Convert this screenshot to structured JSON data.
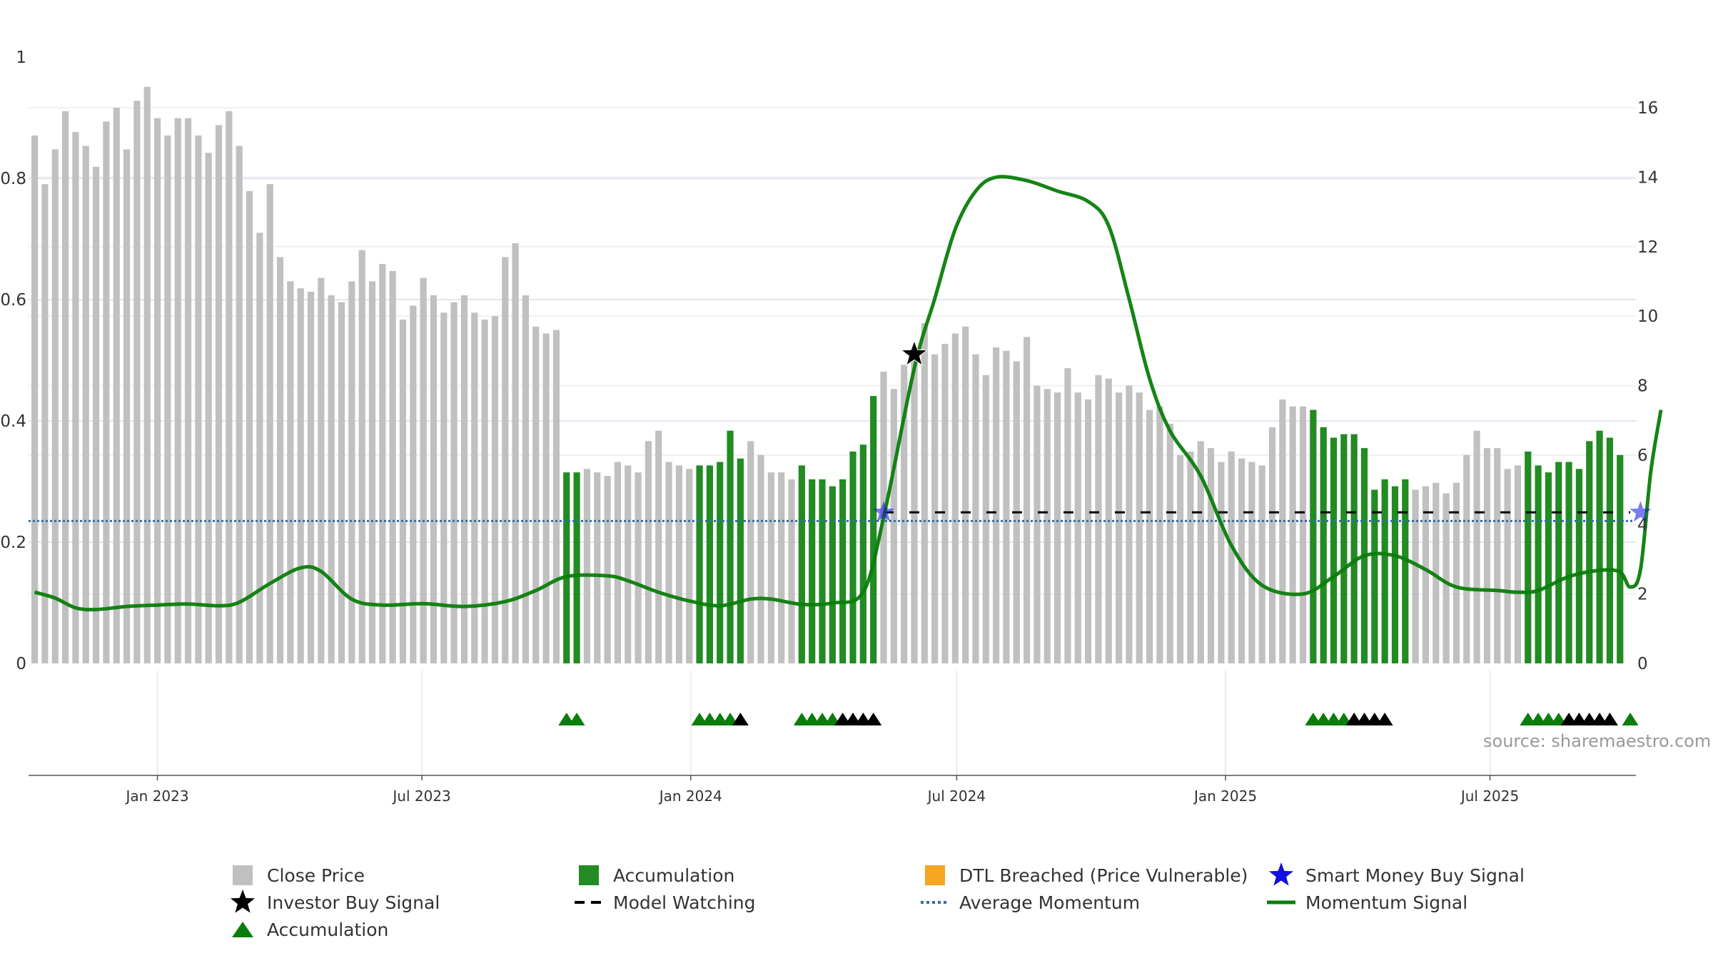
{
  "chart_data": {
    "type": "bar",
    "x_start": "2022-10-09",
    "x_step_days": 7,
    "left_axis": {
      "ticks": [
        "0",
        "0.2",
        "0.4",
        "0.6",
        "0.8",
        "1"
      ],
      "range": [
        0,
        1
      ]
    },
    "right_axis": {
      "ticks": [
        "0",
        "2",
        "4",
        "6",
        "8",
        "10",
        "12",
        "14",
        "16"
      ],
      "range": [
        0,
        17.5
      ]
    },
    "x_ticks": [
      "Jan 2023",
      "Jul 2023",
      "Jan 2024",
      "Jul 2024",
      "Jan 2025",
      "Jul 2025"
    ],
    "close_price": [
      15.2,
      13.8,
      14.8,
      15.9,
      15.3,
      14.9,
      14.3,
      15.6,
      16.0,
      14.8,
      16.2,
      16.6,
      15.7,
      15.2,
      15.7,
      15.7,
      15.2,
      14.7,
      15.5,
      15.9,
      14.9,
      13.6,
      12.4,
      13.8,
      11.7,
      11.0,
      10.8,
      10.7,
      11.1,
      10.6,
      10.4,
      11.0,
      11.9,
      11.0,
      11.5,
      11.3,
      9.9,
      10.3,
      11.1,
      10.6,
      10.1,
      10.4,
      10.6,
      10.1,
      9.9,
      10.0,
      11.7,
      12.1,
      10.6,
      9.7,
      9.5,
      9.6,
      5.5,
      5.5,
      5.6,
      5.5,
      5.4,
      5.8,
      5.7,
      5.5,
      6.4,
      6.7,
      5.8,
      5.7,
      5.6,
      5.7,
      5.7,
      5.8,
      6.7,
      5.9,
      6.4,
      6.0,
      5.5,
      5.5,
      5.3,
      5.7,
      5.3,
      5.3,
      5.1,
      5.3,
      6.1,
      6.3,
      7.7,
      8.4,
      7.9,
      8.6,
      9.0,
      9.8,
      8.9,
      9.2,
      9.5,
      9.7,
      8.9,
      8.3,
      9.1,
      9.0,
      8.7,
      9.4,
      8.0,
      7.9,
      7.8,
      8.5,
      7.8,
      7.6,
      8.3,
      8.2,
      7.8,
      8.0,
      7.8,
      7.3,
      7.4,
      6.9,
      6.0,
      6.1,
      6.4,
      6.2,
      5.8,
      6.1,
      5.9,
      5.8,
      5.7,
      6.8,
      7.6,
      7.4,
      7.4,
      7.3,
      6.8,
      6.5,
      6.6,
      6.6,
      6.2,
      5.0,
      5.3,
      5.1,
      5.3,
      5.0,
      5.1,
      5.2,
      4.9,
      5.2,
      6.0,
      6.7,
      6.2,
      6.2,
      5.6,
      5.7,
      6.1,
      5.7,
      5.5,
      5.8,
      5.8,
      5.6,
      6.4,
      6.7,
      6.5,
      6.0
    ],
    "accumulation_weeks": [
      52,
      53,
      65,
      66,
      67,
      68,
      69,
      75,
      76,
      77,
      78,
      79,
      80,
      81,
      82,
      125,
      126,
      127,
      128,
      129,
      130,
      131,
      132,
      133,
      134,
      146,
      147,
      148,
      149,
      150,
      151,
      152,
      153,
      154,
      155,
      156,
      157,
      158
    ],
    "average_momentum": 4.1,
    "model_watching": {
      "start_week": 83,
      "end_week": 156,
      "level": 4.35
    },
    "momentum_key_points": [
      [
        0,
        2.05
      ],
      [
        2,
        1.88
      ],
      [
        4,
        1.6
      ],
      [
        6,
        1.55
      ],
      [
        9,
        1.64
      ],
      [
        12,
        1.68
      ],
      [
        15,
        1.71
      ],
      [
        18,
        1.66
      ],
      [
        20,
        1.76
      ],
      [
        23,
        2.3
      ],
      [
        26,
        2.75
      ],
      [
        28,
        2.65
      ],
      [
        31,
        1.85
      ],
      [
        34,
        1.68
      ],
      [
        38,
        1.72
      ],
      [
        42,
        1.64
      ],
      [
        46,
        1.78
      ],
      [
        49,
        2.1
      ],
      [
        52,
        2.5
      ],
      [
        56,
        2.52
      ],
      [
        58,
        2.38
      ],
      [
        61,
        2.05
      ],
      [
        64,
        1.8
      ],
      [
        67,
        1.66
      ],
      [
        70,
        1.85
      ],
      [
        72,
        1.85
      ],
      [
        75,
        1.7
      ],
      [
        78,
        1.74
      ],
      [
        81,
        2.05
      ],
      [
        83,
        4.2
      ],
      [
        86,
        8.5
      ],
      [
        88,
        10.5
      ],
      [
        90,
        12.5
      ],
      [
        92,
        13.6
      ],
      [
        94,
        14.0
      ],
      [
        97,
        13.9
      ],
      [
        100,
        13.6
      ],
      [
        103,
        13.3
      ],
      [
        105,
        12.6
      ],
      [
        107,
        10.5
      ],
      [
        109,
        8.2
      ],
      [
        111,
        6.7
      ],
      [
        114,
        5.4
      ],
      [
        117,
        3.4
      ],
      [
        120,
        2.25
      ],
      [
        124,
        2.0
      ],
      [
        127,
        2.5
      ],
      [
        130,
        3.1
      ],
      [
        133,
        3.1
      ],
      [
        136,
        2.7
      ],
      [
        139,
        2.2
      ],
      [
        143,
        2.1
      ],
      [
        145,
        2.05
      ],
      [
        147,
        2.1
      ],
      [
        150,
        2.5
      ],
      [
        153,
        2.68
      ],
      [
        155,
        2.63
      ],
      [
        156,
        2.2
      ],
      [
        157,
        2.7
      ],
      [
        158,
        5.5
      ],
      [
        159,
        7.3
      ]
    ],
    "investor_buy_signals": [
      [
        86,
        8.9
      ]
    ],
    "smart_money_buy_signals": [
      [
        83,
        4.35
      ],
      [
        157,
        4.35
      ]
    ],
    "triangles": [
      {
        "week": 52,
        "color": "green"
      },
      {
        "week": 53,
        "color": "green"
      },
      {
        "week": 65,
        "color": "green"
      },
      {
        "week": 66,
        "color": "green"
      },
      {
        "week": 67,
        "color": "green"
      },
      {
        "week": 68,
        "color": "green"
      },
      {
        "week": 69,
        "color": "black"
      },
      {
        "week": 75,
        "color": "green"
      },
      {
        "week": 76,
        "color": "green"
      },
      {
        "week": 77,
        "color": "green"
      },
      {
        "week": 78,
        "color": "green"
      },
      {
        "week": 79,
        "color": "black"
      },
      {
        "week": 80,
        "color": "black"
      },
      {
        "week": 81,
        "color": "black"
      },
      {
        "week": 82,
        "color": "black"
      },
      {
        "week": 125,
        "color": "green"
      },
      {
        "week": 126,
        "color": "green"
      },
      {
        "week": 127,
        "color": "green"
      },
      {
        "week": 128,
        "color": "green"
      },
      {
        "week": 129,
        "color": "black"
      },
      {
        "week": 130,
        "color": "black"
      },
      {
        "week": 131,
        "color": "black"
      },
      {
        "week": 132,
        "color": "black"
      },
      {
        "week": 146,
        "color": "green"
      },
      {
        "week": 147,
        "color": "green"
      },
      {
        "week": 148,
        "color": "green"
      },
      {
        "week": 149,
        "color": "green"
      },
      {
        "week": 150,
        "color": "black"
      },
      {
        "week": 151,
        "color": "black"
      },
      {
        "week": 152,
        "color": "black"
      },
      {
        "week": 153,
        "color": "black"
      },
      {
        "week": 154,
        "color": "black"
      },
      {
        "week": 156,
        "color": "green"
      }
    ],
    "colors": {
      "close_price": "#c0c0c0",
      "accumulation": "#228B22",
      "momentum": "#0a7d0a",
      "average_momentum": "#3070a8",
      "model_watching": "#000000",
      "dtl": "#f5a623",
      "smart_money": "#1010e0",
      "investor": "#000000",
      "triangle_green": "#0a7d0a",
      "triangle_black": "#000000"
    },
    "source": "source: sharemaestro.com",
    "legend": [
      {
        "label": "Close Price",
        "icon": "gray-square-icon"
      },
      {
        "label": "Accumulation",
        "icon": "green-square-icon"
      },
      {
        "label": "DTL Breached (Price Vulnerable)",
        "icon": "orange-square-icon"
      },
      {
        "label": "Smart Money Buy Signal",
        "icon": "blue-star-icon"
      },
      {
        "label": "Investor Buy Signal",
        "icon": "black-star-icon"
      },
      {
        "label": "Model Watching",
        "icon": "dashed-line-icon"
      },
      {
        "label": "Average Momentum",
        "icon": "dotted-line-icon"
      },
      {
        "label": "Momentum Signal",
        "icon": "green-line-icon"
      },
      {
        "label": "Accumulation",
        "icon": "green-triangle-icon"
      }
    ]
  }
}
